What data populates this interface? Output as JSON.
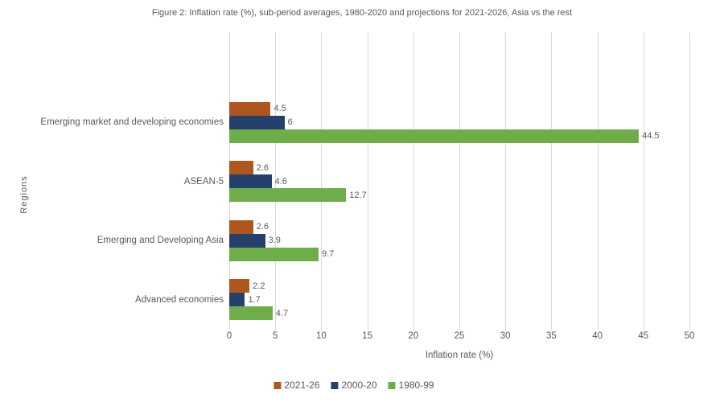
{
  "chart_data": {
    "type": "bar",
    "orientation": "horizontal",
    "title": "Figure 2: Inflation rate (%), sub-period averages, 1980-2020 and projections for 2021-2026, Asia vs the rest",
    "xlabel": "Inflation rate (%)",
    "ylabel": "Regions",
    "categories": [
      "Emerging market and developing economies",
      "ASEAN-5",
      "Emerging and Developing Asia",
      "Advanced economies"
    ],
    "series": [
      {
        "name": "2021-26",
        "color": "#AE561E",
        "values": [
          4.5,
          2.6,
          2.6,
          2.2
        ]
      },
      {
        "name": "2000-20",
        "color": "#25416B",
        "values": [
          6,
          4.6,
          3.9,
          1.7
        ]
      },
      {
        "name": "1980-99",
        "color": "#6FAD4B",
        "values": [
          44.5,
          12.7,
          9.7,
          4.7
        ]
      }
    ],
    "xlim": [
      0,
      50
    ],
    "xticks": [
      0,
      5,
      10,
      15,
      20,
      25,
      30,
      35,
      40,
      45,
      50
    ],
    "grid": "vertical-only",
    "gridline_color": "#d9d9d9",
    "legend_position": "bottom",
    "data_labels": "outside-end"
  }
}
